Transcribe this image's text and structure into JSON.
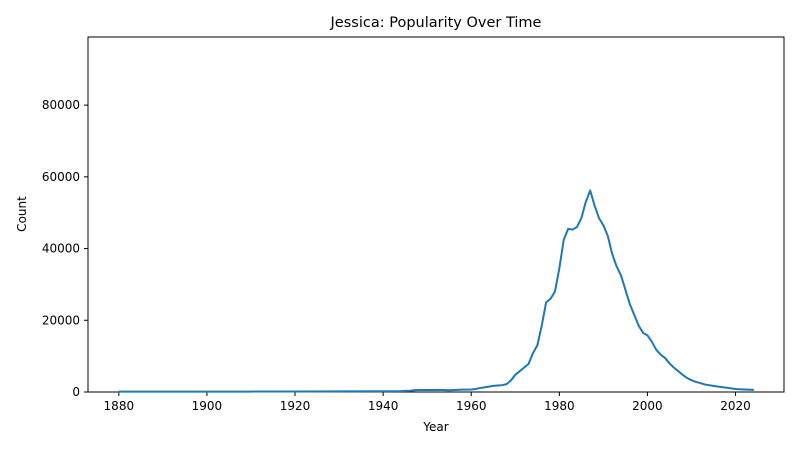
{
  "chart_data": {
    "type": "line",
    "title": "Jessica: Popularity Over Time",
    "xlabel": "Year",
    "ylabel": "Count",
    "xlim": [
      1873,
      2031
    ],
    "ylim": [
      0,
      99000
    ],
    "x_ticks": [
      1880,
      1900,
      1920,
      1940,
      1960,
      1980,
      2000,
      2020
    ],
    "y_ticks": [
      0,
      20000,
      40000,
      60000,
      80000
    ],
    "grid": false,
    "legend": "none",
    "series": [
      {
        "color": "#1f77b4",
        "x": [
          1880,
          1890,
          1900,
          1910,
          1920,
          1930,
          1940,
          1944,
          1946,
          1947,
          1948,
          1950,
          1953,
          1955,
          1958,
          1960,
          1961,
          1962,
          1963,
          1964,
          1965,
          1966,
          1967,
          1968,
          1969,
          1970,
          1971,
          1972,
          1973,
          1974,
          1975,
          1976,
          1977,
          1978,
          1979,
          1980,
          1981,
          1982,
          1983,
          1984,
          1985,
          1986,
          1987,
          1988,
          1989,
          1990,
          1991,
          1992,
          1993,
          1994,
          1995,
          1996,
          1997,
          1998,
          1999,
          2000,
          2001,
          2002,
          2003,
          2004,
          2005,
          2006,
          2007,
          2008,
          2009,
          2010,
          2011,
          2012,
          2013,
          2014,
          2015,
          2016,
          2017,
          2018,
          2019,
          2020,
          2021,
          2022,
          2023,
          2024
        ],
        "values": [
          100,
          100,
          110,
          120,
          150,
          160,
          200,
          250,
          350,
          500,
          550,
          550,
          600,
          500,
          650,
          700,
          850,
          1100,
          1300,
          1500,
          1700,
          1800,
          1900,
          2200,
          3200,
          4800,
          5800,
          6800,
          7800,
          10800,
          13000,
          18500,
          25000,
          26000,
          28000,
          34500,
          42500,
          45500,
          45300,
          46000,
          48500,
          53000,
          56200,
          52000,
          48500,
          46500,
          43500,
          38500,
          35000,
          32500,
          28500,
          24500,
          21500,
          18500,
          16500,
          15800,
          14000,
          11800,
          10400,
          9500,
          8000,
          6800,
          5800,
          4800,
          3900,
          3300,
          2800,
          2500,
          2100,
          1900,
          1700,
          1500,
          1350,
          1200,
          1000,
          850,
          750,
          700,
          650,
          600
        ]
      }
    ]
  }
}
